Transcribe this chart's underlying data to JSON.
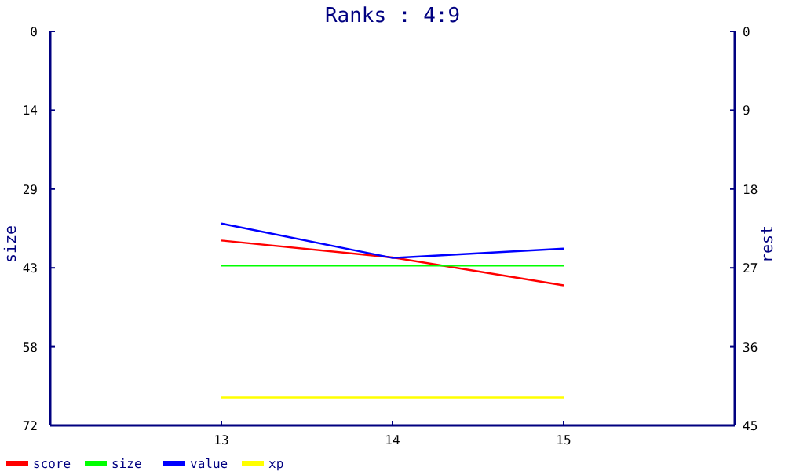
{
  "chart_data": {
    "type": "line",
    "title": "Ranks : 4:9",
    "ylabel": "size",
    "y2label": "rest",
    "x": [
      13,
      14,
      15
    ],
    "xlim": [
      12,
      16
    ],
    "xticks": [
      13,
      14,
      15
    ],
    "ylim": [
      72,
      0
    ],
    "yticks": [
      0,
      {
        "value": 14.4,
        "label": "14"
      },
      {
        "value": 28.8,
        "label": "29"
      },
      {
        "value": 43.2,
        "label": "43"
      },
      {
        "value": 57.6,
        "label": "58"
      },
      72
    ],
    "y2lim": [
      45,
      0
    ],
    "y2ticks": [
      0,
      9,
      18,
      27,
      36,
      45
    ],
    "series": [
      {
        "name": "score",
        "color": "#ff0000",
        "values": [
          38.2,
          41.3,
          46.4
        ]
      },
      {
        "name": "size",
        "color": "#00ff00",
        "values": [
          42.8,
          42.8,
          42.8
        ]
      },
      {
        "name": "value",
        "color": "#0000ff",
        "values": [
          35.1,
          41.4,
          39.7
        ]
      },
      {
        "name": "xp",
        "color": "#ffff00",
        "values": [
          66.9,
          66.9,
          66.9
        ]
      }
    ],
    "grid": false,
    "legend": "bottom left",
    "marker": "none",
    "line_style": "solid"
  }
}
